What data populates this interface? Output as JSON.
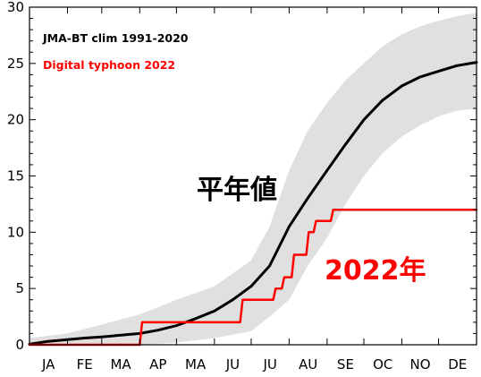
{
  "chart_data": {
    "type": "line",
    "xlabel": "",
    "ylabel": "",
    "ylim": [
      0,
      30
    ],
    "yticks": [
      0,
      5,
      10,
      15,
      20,
      25,
      30
    ],
    "xlim": [
      0,
      365
    ],
    "month_labels": [
      "JA",
      "FE",
      "MA",
      "AP",
      "MA",
      "JU",
      "JU",
      "AU",
      "SE",
      "OC",
      "NO",
      "DE"
    ],
    "grid": false,
    "legend": {
      "placement": "top-left"
    },
    "colors": {
      "climatology": "#000000",
      "spread": "#e0e0e0",
      "year2022": "#ff0000"
    },
    "annotations": {
      "climatology_label": "平年値",
      "year_label": "2022年"
    },
    "series": [
      {
        "name": "JMA-BT clim 1991-2020",
        "style": "line",
        "x": [
          0,
          15,
          31,
          45,
          59,
          75,
          90,
          105,
          120,
          135,
          151,
          166,
          181,
          196,
          212,
          227,
          243,
          258,
          273,
          288,
          304,
          319,
          334,
          349,
          365
        ],
        "values": [
          0.05,
          0.3,
          0.45,
          0.6,
          0.7,
          0.85,
          1.0,
          1.3,
          1.7,
          2.3,
          3.0,
          4.0,
          5.2,
          7.0,
          10.5,
          13.0,
          15.5,
          17.8,
          20.0,
          21.7,
          23.0,
          23.8,
          24.3,
          24.8,
          25.1
        ]
      },
      {
        "name": "Digital typhoon 2022",
        "style": "step",
        "x": [
          0,
          90,
          92,
          140,
          142,
          172,
          174,
          199,
          201,
          206,
          208,
          214,
          216,
          226,
          228,
          232,
          234,
          240,
          242,
          246,
          248,
          365
        ],
        "values": [
          0,
          0,
          2,
          2,
          2,
          2,
          4,
          4,
          5,
          5,
          6,
          6,
          8,
          8,
          10,
          10,
          11,
          11,
          11,
          11,
          12,
          12
        ]
      }
    ],
    "spread_band": {
      "x": [
        0,
        31,
        59,
        90,
        120,
        151,
        181,
        196,
        212,
        227,
        243,
        258,
        273,
        288,
        304,
        319,
        334,
        349,
        365
      ],
      "lower": [
        0,
        0,
        0,
        0,
        0.2,
        0.6,
        1.2,
        2.5,
        4.0,
        7.0,
        9.5,
        12.5,
        15.0,
        17.0,
        18.5,
        19.5,
        20.3,
        20.8,
        21.0
      ],
      "upper": [
        0.6,
        1.0,
        1.8,
        2.7,
        4.0,
        5.2,
        7.5,
        10.5,
        15.5,
        19.0,
        21.5,
        23.5,
        25.0,
        26.5,
        27.6,
        28.3,
        28.8,
        29.2,
        29.5
      ]
    }
  }
}
